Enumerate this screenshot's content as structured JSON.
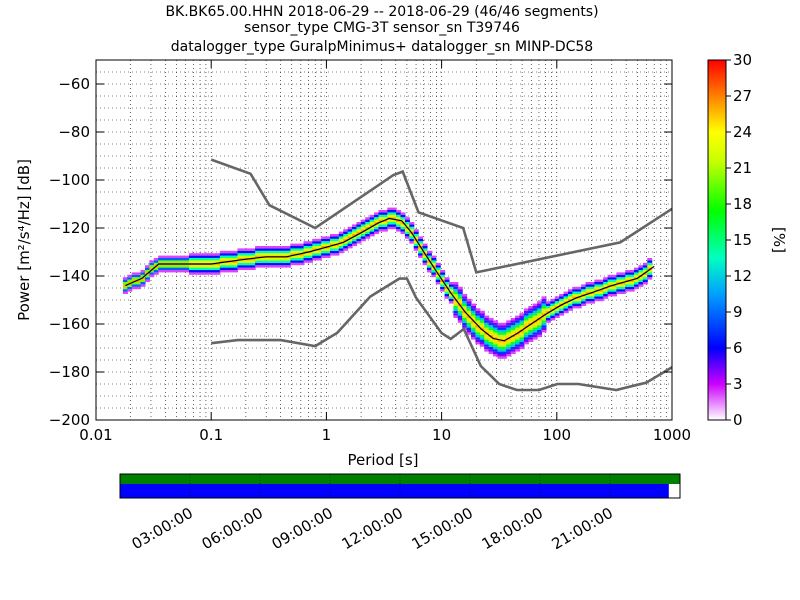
{
  "title": {
    "line1": "BK.BK65.00.HHN   2018-06-29 -- 2018-06-29  (46/46 segments)",
    "line2": "sensor_type CMG-3T sensor_sn T39746",
    "line3": "datalogger_type GuralpMinimus+ datalogger_sn MINP-DC58"
  },
  "chart_data": [
    {
      "type": "heatmap",
      "xlabel": "Period [s]",
      "ylabel": "Power [m²/s⁴/Hz] [dB]",
      "x_scale": "log",
      "xlim": [
        0.01,
        1000
      ],
      "ylim": [
        -200,
        -50
      ],
      "x_ticks": [
        0.01,
        0.1,
        1,
        10,
        100,
        1000
      ],
      "x_tick_labels": [
        "0.01",
        "0.1",
        "1",
        "10",
        "100",
        "1000"
      ],
      "y_ticks": [
        -200,
        -180,
        -160,
        -140,
        -120,
        -100,
        -80,
        -60
      ],
      "y_tick_labels": [
        "−200",
        "−180",
        "−160",
        "−140",
        "−120",
        "−100",
        "−80",
        "−60"
      ],
      "grid": true,
      "colorbar": {
        "label": "[%]",
        "range": [
          0,
          30
        ],
        "ticks": [
          0,
          3,
          6,
          9,
          12,
          15,
          18,
          21,
          24,
          27,
          30
        ]
      },
      "psd_mode": {
        "period": [
          0.018,
          0.025,
          0.035,
          0.05,
          0.07,
          0.1,
          0.14,
          0.2,
          0.3,
          0.45,
          0.7,
          1,
          1.4,
          2,
          2.8,
          3.5,
          4.5,
          5.5,
          7,
          9,
          12,
          16,
          22,
          28,
          35,
          45,
          60,
          80,
          110,
          150,
          200,
          300,
          500,
          700
        ],
        "power": [
          -144,
          -141,
          -135,
          -135,
          -135,
          -135,
          -134,
          -133,
          -132,
          -132,
          -130,
          -128,
          -126,
          -122,
          -118,
          -116,
          -117,
          -122,
          -130,
          -138,
          -147,
          -155,
          -162,
          -166,
          -167,
          -164,
          -160,
          -156,
          -152,
          -149,
          -147,
          -144,
          -141,
          -136
        ]
      },
      "nhnm": {
        "period": [
          0.1,
          0.22,
          0.32,
          0.8,
          3.8,
          4.6,
          6.3,
          15.4,
          20,
          354.8,
          1000
        ],
        "power": [
          -91.5,
          -97.4,
          -110.5,
          -120.0,
          -98.0,
          -96.5,
          -113.5,
          -120.0,
          -138.5,
          -126.0,
          -112.0
        ]
      },
      "nlnm": {
        "period": [
          0.1,
          0.17,
          0.4,
          0.8,
          1.24,
          2.4,
          4.3,
          5.0,
          6.0,
          10.0,
          12.0,
          15.6,
          21.9,
          31.6,
          45.0,
          70.0,
          101.0,
          154.0,
          328.0,
          600.0,
          1000.0
        ],
        "power": [
          -168.0,
          -166.7,
          -166.7,
          -169.2,
          -163.7,
          -148.6,
          -141.1,
          -141.1,
          -149.0,
          -163.8,
          -166.2,
          -162.1,
          -177.5,
          -185.0,
          -187.5,
          -187.5,
          -185.0,
          -185.0,
          -187.5,
          -184.4,
          -178.0
        ]
      }
    },
    {
      "type": "bar",
      "description": "data coverage timeline",
      "x_tick_labels": [
        "03:00:00",
        "06:00:00",
        "09:00:00",
        "12:00:00",
        "15:00:00",
        "18:00:00",
        "21:00:00"
      ],
      "series": [
        {
          "color": "#008000",
          "coverage": [
            0,
            1
          ]
        },
        {
          "color": "#0000ff",
          "coverage": [
            0,
            0.98
          ]
        }
      ]
    }
  ]
}
